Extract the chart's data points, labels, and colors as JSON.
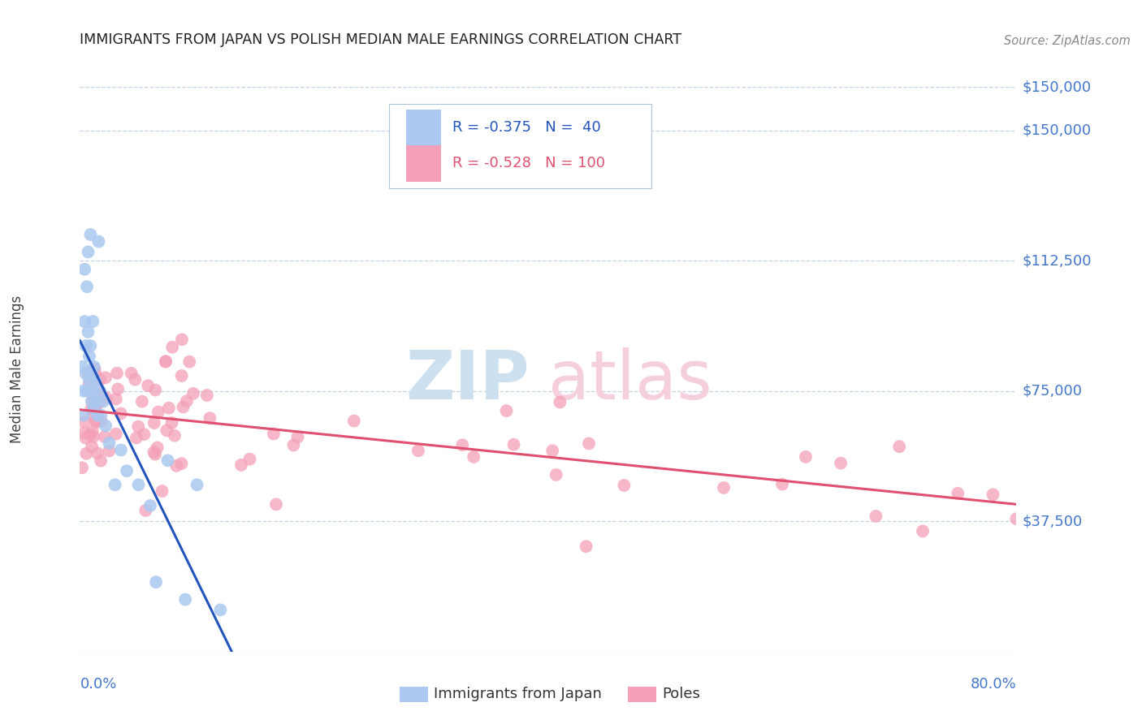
{
  "title": "IMMIGRANTS FROM JAPAN VS POLISH MEDIAN MALE EARNINGS CORRELATION CHART",
  "source": "Source: ZipAtlas.com",
  "ylabel": "Median Male Earnings",
  "y_ticks": [
    37500,
    75000,
    112500,
    150000
  ],
  "y_tick_labels": [
    "$37,500",
    "$75,000",
    "$112,500",
    "$150,000"
  ],
  "y_min": 0,
  "y_max": 162500,
  "x_min": 0.0,
  "x_max": 0.8,
  "japan_color": "#aac8f0",
  "poland_color": "#f4a0b8",
  "japan_line_color": "#2255bb",
  "poland_line_color": "#e05070",
  "bg_color": "#ffffff",
  "grid_color": "#c0d4e8",
  "title_color": "#222222",
  "axis_label_color": "#4477cc",
  "watermark_zip_color": "#cce0f0",
  "watermark_atlas_color": "#f5d0dc"
}
